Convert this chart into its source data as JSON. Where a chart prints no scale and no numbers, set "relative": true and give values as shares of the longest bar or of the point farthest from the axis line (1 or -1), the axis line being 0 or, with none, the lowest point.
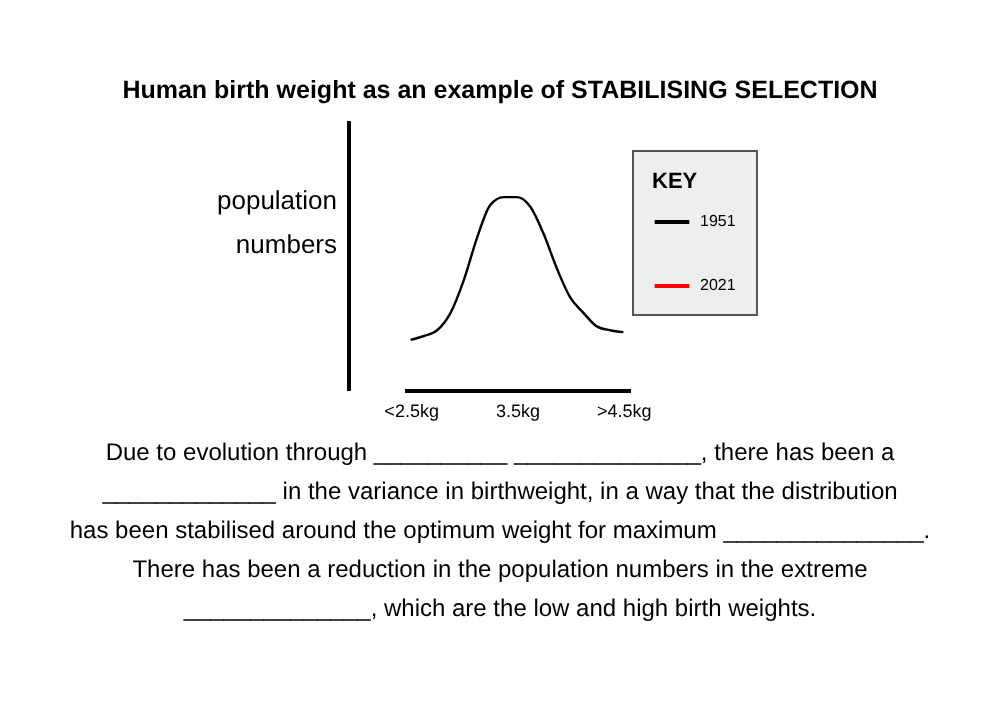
{
  "chart_data": {
    "type": "line",
    "title": "Human birth weight as an example of STABILISING SELECTION",
    "ylabel": "population numbers",
    "legend_title": "KEY",
    "relative": true,
    "categories": [
      "<2.5kg",
      null,
      null,
      null,
      null,
      null,
      null,
      null,
      "3.5kg",
      null,
      null,
      null,
      null,
      null,
      null,
      null,
      ">4.5kg"
    ],
    "series": [
      {
        "name": "1951",
        "color": "#000000",
        "values": [
          0.26,
          0.28,
          0.31,
          0.4,
          0.57,
          0.79,
          0.96,
          1,
          1,
          0.95,
          0.81,
          0.63,
          0.48,
          0.4,
          0.33,
          0.31,
          0.3
        ]
      },
      {
        "name": "2021",
        "color": "#ff0000",
        "values": [
          null,
          null,
          null,
          null,
          null,
          null,
          null,
          null,
          null,
          null,
          null,
          null,
          null,
          null,
          null,
          null,
          null
        ]
      }
    ],
    "legend": "top right",
    "grid": false,
    "marker": "none",
    "line_style": "solid",
    "annotations": [
      "Due to evolution through __________ ______________, there has been a _____________ in the variance in birthweight, in a way that the distribution has been stabilised around the optimum weight for maximum _______________. There has been a reduction in the population numbers in the extreme ______________, which are the low and high birth weights."
    ]
  }
}
